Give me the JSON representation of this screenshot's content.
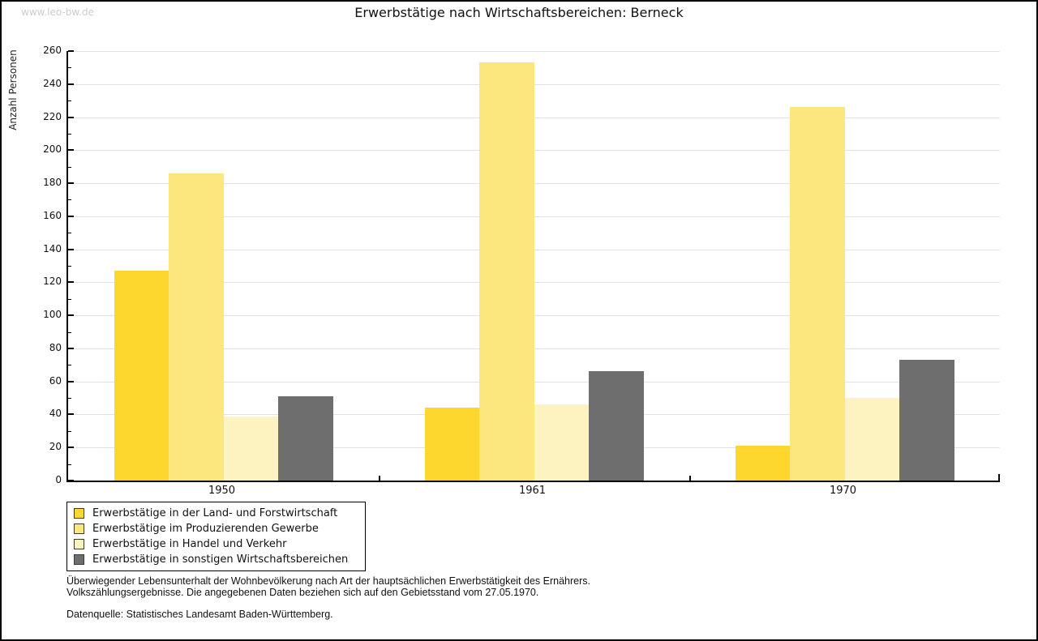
{
  "watermark": "www.leo-bw.de",
  "title": "Erwerbstätige nach Wirtschaftsbereichen: Berneck",
  "chart_data": {
    "type": "bar",
    "title": "Erwerbstätige nach Wirtschaftsbereichen: Berneck",
    "xlabel": "",
    "ylabel": "Anzahl Personen",
    "categories": [
      "1950",
      "1961",
      "1970"
    ],
    "series": [
      {
        "name": "Erwerbstätige in der Land- und Forstwirtschaft",
        "color": "#FDD62E",
        "values": [
          127,
          44,
          21
        ]
      },
      {
        "name": "Erwerbstätige im Produzierenden Gewerbe",
        "color": "#FCE67E",
        "values": [
          186,
          253,
          226
        ]
      },
      {
        "name": "Erwerbstätige in Handel und Verkehr",
        "color": "#FCF3C1",
        "values": [
          39,
          46,
          50
        ]
      },
      {
        "name": "Erwerbstätige in sonstigen Wirtschaftsbereichen",
        "color": "#6E6E6E",
        "values": [
          51,
          66,
          73
        ]
      }
    ],
    "ylim": [
      0,
      260
    ],
    "ytick_step": 20,
    "yminor_step": 10,
    "grid": true,
    "legend_position": "bottom-left"
  },
  "footnotes": {
    "line1": "Überwiegender Lebensunterhalt der Wohnbevölkerung nach Art der hauptsächlichen Erwerbstätigkeit des Ernährers.",
    "line2": "Volkszählungsergebnisse. Die angegebenen Daten beziehen sich auf den Gebietsstand vom 27.05.1970.",
    "source": "Datenquelle: Statistisches Landesamt Baden-Württemberg."
  }
}
